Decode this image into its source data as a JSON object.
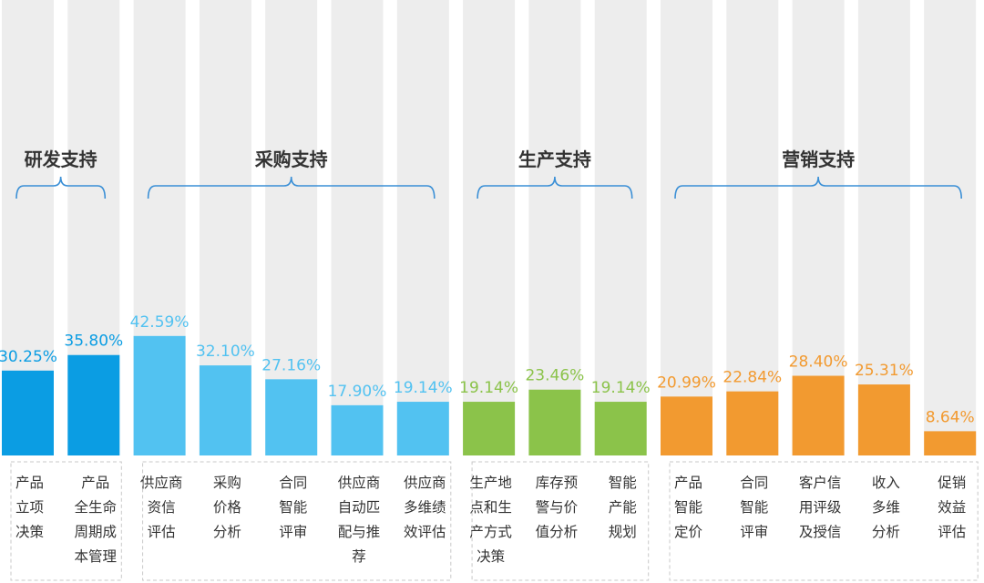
{
  "chart_data": {
    "type": "bar",
    "groups": [
      {
        "name": "研发支持",
        "color": "#0b9de3",
        "categories": [
          {
            "label": "产品立项决策",
            "lines": [
              "产品",
              "立项",
              "决策"
            ],
            "value": 30.25,
            "value_label": "30.25%"
          },
          {
            "label": "产品全生命周期成本管理",
            "lines": [
              "产品",
              "全生命",
              "周期成",
              "本管理"
            ],
            "value": 35.8,
            "value_label": "35.80%"
          }
        ]
      },
      {
        "name": "采购支持",
        "color": "#52c2f1",
        "categories": [
          {
            "label": "供应商资信评估",
            "lines": [
              "供应商",
              "资信",
              "评估"
            ],
            "value": 42.59,
            "value_label": "42.59%"
          },
          {
            "label": "采购价格分析",
            "lines": [
              "采购",
              "价格",
              "分析"
            ],
            "value": 32.1,
            "value_label": "32.10%"
          },
          {
            "label": "合同智能评审",
            "lines": [
              "合同",
              "智能",
              "评审"
            ],
            "value": 27.16,
            "value_label": "27.16%"
          },
          {
            "label": "供应商自动匹配与推荐",
            "lines": [
              "供应商",
              "自动匹",
              "配与推",
              "荐"
            ],
            "value": 17.9,
            "value_label": "17.90%"
          },
          {
            "label": "供应商多维绩效评估",
            "lines": [
              "供应商",
              "多维绩",
              "效评估"
            ],
            "value": 19.14,
            "value_label": "19.14%"
          }
        ]
      },
      {
        "name": "生产支持",
        "color": "#8bc34a",
        "categories": [
          {
            "label": "生产地点和生产方式决策",
            "lines": [
              "生产地",
              "点和生",
              "产方式",
              "决策"
            ],
            "value": 19.14,
            "value_label": "19.14%"
          },
          {
            "label": "库存预警与价值分析",
            "lines": [
              "库存预",
              "警与价",
              "值分析"
            ],
            "value": 23.46,
            "value_label": "23.46%"
          },
          {
            "label": "智能产能规划",
            "lines": [
              "智能",
              "产能",
              "规划"
            ],
            "value": 19.14,
            "value_label": "19.14%"
          }
        ]
      },
      {
        "name": "营销支持",
        "color": "#f29a30",
        "categories": [
          {
            "label": "产品智能定价",
            "lines": [
              "产品",
              "智能",
              "定价"
            ],
            "value": 20.99,
            "value_label": "20.99%"
          },
          {
            "label": "合同智能评审",
            "lines": [
              "合同",
              "智能",
              "评审"
            ],
            "value": 22.84,
            "value_label": "22.84%"
          },
          {
            "label": "客户信用评级及授信",
            "lines": [
              "客户信",
              "用评级",
              "及授信"
            ],
            "value": 28.4,
            "value_label": "28.40%"
          },
          {
            "label": "收入多维分析",
            "lines": [
              "收入",
              "多维",
              "分析"
            ],
            "value": 25.31,
            "value_label": "25.31%"
          },
          {
            "label": "促销效益评估",
            "lines": [
              "促销",
              "效益",
              "评估"
            ],
            "value": 8.64,
            "value_label": "8.64%"
          }
        ]
      }
    ],
    "ylim": [
      0,
      100
    ],
    "background_bar_color": "#ededed",
    "bracket_color": "#3a8fd6",
    "category_box_border_color": "#c8c8c8",
    "grid": false,
    "legend": "none"
  }
}
